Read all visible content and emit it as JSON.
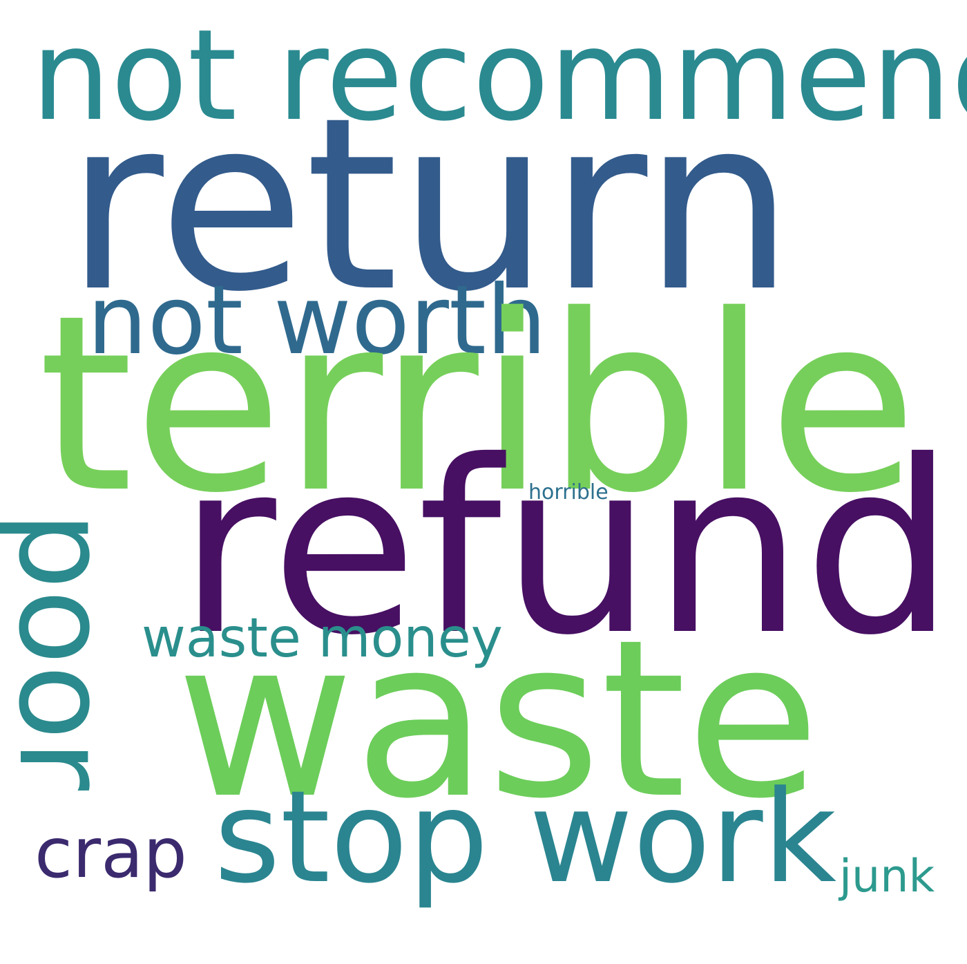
{
  "words": {
    "not_recommend": {
      "text": "not recommend",
      "color": "#2a8a90"
    },
    "return": {
      "text": "return",
      "color": "#335b8c"
    },
    "not_worth": {
      "text": "not worth",
      "color": "#2f6a8e"
    },
    "terrible": {
      "text": "terrible",
      "color": "#76cf5a"
    },
    "horrible": {
      "text": "horrible",
      "color": "#2d708e"
    },
    "refund": {
      "text": "refund",
      "color": "#471063"
    },
    "poor": {
      "text": "poor",
      "color": "#2b8a8d"
    },
    "waste_money": {
      "text": "waste money",
      "color": "#2a8f8c"
    },
    "waste": {
      "text": "waste",
      "color": "#6ccd5a"
    },
    "stop_work": {
      "text": "stop work",
      "color": "#2a8590"
    },
    "crap": {
      "text": "crap",
      "color": "#3b2a6e"
    },
    "junk": {
      "text": "junk",
      "color": "#2d9a8e"
    }
  }
}
